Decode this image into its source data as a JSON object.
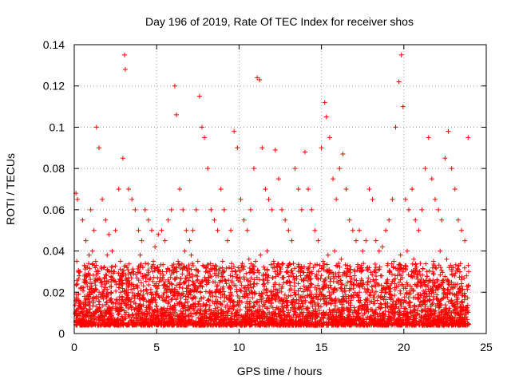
{
  "chart_data": {
    "type": "scatter",
    "title": "Day 196 of 2019, Rate Of TEC Index for receiver shos",
    "xlabel": "GPS time / hours",
    "ylabel": "ROTI / TECUs",
    "xlim": [
      0,
      25
    ],
    "ylim": [
      0,
      0.14
    ],
    "xticks": [
      0,
      5,
      10,
      15,
      20,
      25
    ],
    "xtick_labels": [
      "0",
      "5",
      "10",
      "15",
      "20",
      "25"
    ],
    "yticks": [
      0,
      0.02,
      0.04,
      0.06,
      0.08,
      0.1,
      0.12,
      0.14
    ],
    "ytick_labels": [
      "0",
      "0.02",
      "0.04",
      "0.06",
      "0.08",
      "0.1",
      "0.12",
      "0.14"
    ],
    "grid": true,
    "marker": "+",
    "series": [
      {
        "name": "ROTI",
        "color": "#ff0000",
        "x": [
          0.1,
          0.2,
          0.35,
          0.5,
          0.7,
          0.9,
          1.0,
          1.2,
          1.35,
          1.5,
          1.7,
          1.9,
          2.1,
          2.3,
          2.5,
          2.7,
          2.95,
          3.05,
          3.1,
          3.3,
          3.5,
          3.7,
          3.9,
          4.1,
          4.3,
          4.5,
          4.7,
          4.9,
          5.1,
          5.3,
          5.5,
          5.7,
          5.9,
          6.1,
          6.2,
          6.4,
          6.6,
          6.8,
          7.0,
          7.2,
          7.4,
          7.6,
          7.75,
          7.9,
          8.1,
          8.3,
          8.5,
          8.7,
          8.9,
          9.1,
          9.3,
          9.5,
          9.7,
          9.9,
          10.1,
          10.3,
          10.5,
          10.7,
          10.9,
          11.1,
          11.25,
          11.4,
          11.6,
          11.8,
          12.0,
          12.2,
          12.4,
          12.6,
          12.8,
          13.0,
          13.2,
          13.4,
          13.6,
          13.8,
          14.0,
          14.2,
          14.4,
          14.6,
          14.8,
          15.0,
          15.2,
          15.3,
          15.5,
          15.7,
          15.9,
          16.1,
          16.3,
          16.5,
          16.7,
          16.9,
          17.1,
          17.3,
          17.5,
          17.7,
          17.9,
          18.1,
          18.3,
          18.5,
          18.7,
          18.9,
          19.1,
          19.3,
          19.5,
          19.7,
          19.85,
          19.95,
          20.1,
          20.3,
          20.5,
          20.7,
          20.9,
          21.1,
          21.3,
          21.5,
          21.7,
          21.9,
          22.1,
          22.3,
          22.5,
          22.7,
          22.9,
          23.1,
          23.3,
          23.5,
          23.7,
          23.9,
          0.15,
          0.3,
          0.6,
          0.8,
          1.1,
          1.3,
          1.45,
          2.0,
          2.4,
          2.8,
          3.2,
          3.6,
          4.0,
          4.4,
          4.8,
          5.2,
          5.6,
          6.0,
          6.3,
          6.7,
          7.1,
          7.5,
          7.8,
          8.2,
          8.6,
          9.0,
          9.4,
          9.8,
          10.2,
          10.6,
          11.0,
          11.3,
          11.7,
          12.1,
          12.5,
          12.9,
          13.3,
          13.7,
          14.1,
          14.5,
          14.9,
          15.1,
          15.4,
          15.8,
          16.2,
          16.6,
          17.0,
          17.4,
          17.8,
          18.2,
          18.6,
          19.0,
          19.4,
          19.8,
          20.2,
          20.6,
          21.0,
          21.4,
          21.8,
          22.2,
          22.6,
          23.0,
          23.4,
          23.8
        ],
        "y": [
          0.068,
          0.065,
          0.03,
          0.055,
          0.045,
          0.038,
          0.06,
          0.05,
          0.1,
          0.09,
          0.065,
          0.055,
          0.048,
          0.04,
          0.05,
          0.07,
          0.085,
          0.135,
          0.128,
          0.07,
          0.065,
          0.06,
          0.05,
          0.045,
          0.06,
          0.055,
          0.05,
          0.042,
          0.048,
          0.05,
          0.045,
          0.055,
          0.06,
          0.12,
          0.106,
          0.07,
          0.06,
          0.05,
          0.045,
          0.05,
          0.06,
          0.115,
          0.1,
          0.095,
          0.08,
          0.06,
          0.055,
          0.05,
          0.07,
          0.06,
          0.045,
          0.05,
          0.098,
          0.09,
          0.065,
          0.055,
          0.05,
          0.06,
          0.08,
          0.124,
          0.123,
          0.09,
          0.07,
          0.065,
          0.06,
          0.089,
          0.075,
          0.06,
          0.055,
          0.05,
          0.045,
          0.08,
          0.07,
          0.06,
          0.088,
          0.07,
          0.06,
          0.05,
          0.045,
          0.09,
          0.112,
          0.105,
          0.095,
          0.075,
          0.065,
          0.08,
          0.087,
          0.07,
          0.055,
          0.05,
          0.045,
          0.05,
          0.04,
          0.045,
          0.07,
          0.065,
          0.045,
          0.04,
          0.042,
          0.05,
          0.055,
          0.065,
          0.1,
          0.122,
          0.135,
          0.11,
          0.065,
          0.06,
          0.07,
          0.055,
          0.05,
          0.06,
          0.08,
          0.095,
          0.075,
          0.065,
          0.06,
          0.055,
          0.085,
          0.098,
          0.08,
          0.07,
          0.055,
          0.05,
          0.045,
          0.095,
          0.035,
          0.028,
          0.025,
          0.032,
          0.04,
          0.035,
          0.03,
          0.038,
          0.03,
          0.035,
          0.032,
          0.03,
          0.038,
          0.028,
          0.035,
          0.03,
          0.03,
          0.032,
          0.035,
          0.04,
          0.038,
          0.035,
          0.033,
          0.03,
          0.028,
          0.035,
          0.032,
          0.03,
          0.034,
          0.036,
          0.035,
          0.038,
          0.04,
          0.035,
          0.032,
          0.03,
          0.034,
          0.03,
          0.028,
          0.032,
          0.033,
          0.035,
          0.038,
          0.04,
          0.036,
          0.03,
          0.028,
          0.03,
          0.032,
          0.03,
          0.028,
          0.033,
          0.035,
          0.038,
          0.04,
          0.036,
          0.034,
          0.03,
          0.035,
          0.04,
          0.036,
          0.032,
          0.03,
          0.028
        ]
      }
    ]
  }
}
